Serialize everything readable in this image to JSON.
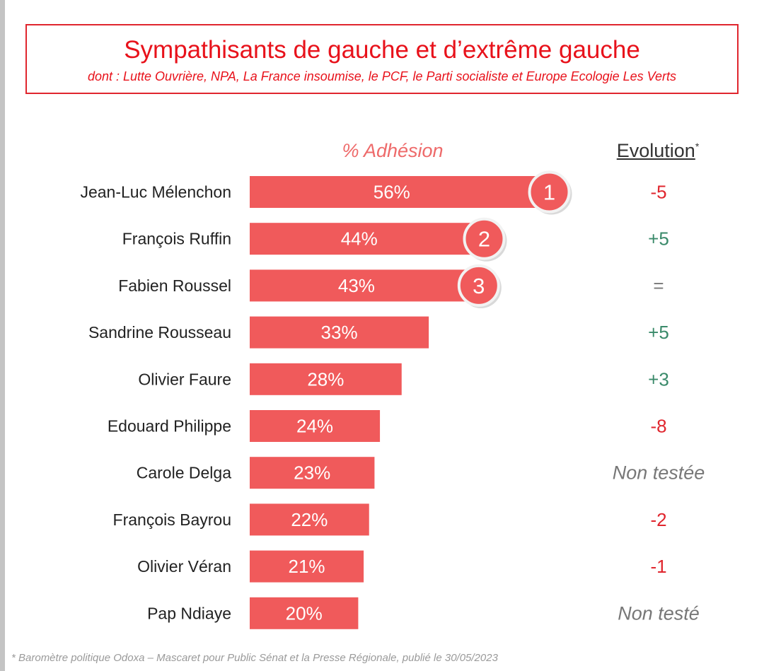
{
  "title": "Sympathisants de gauche et d’extrême gauche",
  "subtitle": "dont : Lutte Ouvrière, NPA, La France insoumise, le PCF, le Parti socialiste et Europe Ecologie Les Verts",
  "header_adhesion": "% Adhésion",
  "header_evolution": "Evolution",
  "header_evolution_mark": "*",
  "footnote": "* Baromètre politique Odoxa – Mascaret pour Public Sénat et la Presse Régionale, publié le 30/05/2023",
  "colors": {
    "bar": "#f05a5b",
    "title": "#e8121b",
    "negative": "#e0262e",
    "positive": "#3a8a6a",
    "neutral": "#777777"
  },
  "chart_data": {
    "type": "bar",
    "orientation": "horizontal",
    "unit": "%",
    "categories": [
      "Jean-Luc Mélenchon",
      "François Ruffin",
      "Fabien Roussel",
      "Sandrine Rousseau",
      "Olivier Faure",
      "Edouard Philippe",
      "Carole Delga",
      "François Bayrou",
      "Olivier Véran",
      "Pap Ndiaye"
    ],
    "values": [
      56,
      44,
      43,
      33,
      28,
      24,
      23,
      22,
      21,
      20
    ],
    "value_labels": [
      "56%",
      "44%",
      "43%",
      "33%",
      "28%",
      "24%",
      "23%",
      "22%",
      "21%",
      "20%"
    ],
    "ranks": [
      "1",
      "2",
      "3"
    ],
    "evolution": [
      "-5",
      "+5",
      "=",
      "+5",
      "+3",
      "-8",
      "Non testée",
      "-2",
      "-1",
      "Non testé"
    ],
    "evolution_kind": [
      "negative",
      "positive",
      "neutral",
      "positive",
      "positive",
      "negative",
      "untested",
      "negative",
      "negative",
      "untested"
    ]
  }
}
